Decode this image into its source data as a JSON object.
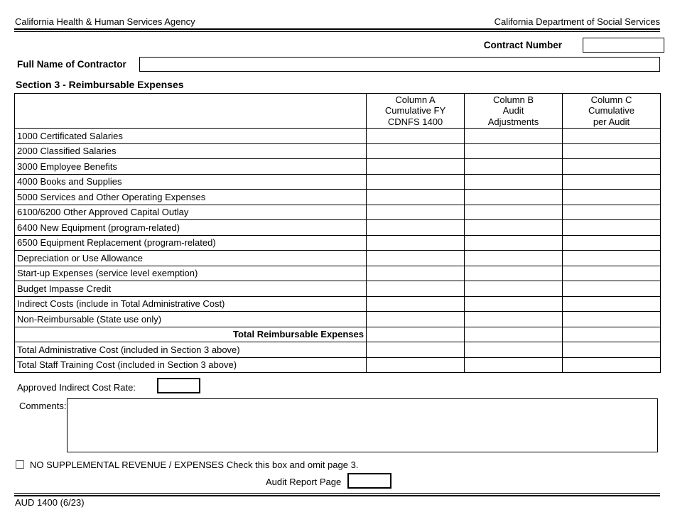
{
  "header": {
    "agency_left": "California Health & Human Services Agency",
    "agency_right": "California Department of Social Services"
  },
  "contract_number": {
    "label": "Contract Number",
    "value": ""
  },
  "contractor": {
    "label": "Full Name of Contractor",
    "value": ""
  },
  "section3": {
    "title": "Section 3 - Reimbursable Expenses",
    "columns": [
      {
        "lines": [
          "Column A",
          "Cumulative FY",
          "CDNFS 1400"
        ]
      },
      {
        "lines": [
          "Column B",
          "Audit",
          "Adjustments"
        ]
      },
      {
        "lines": [
          "Column C",
          "Cumulative",
          "per Audit"
        ]
      }
    ],
    "rows": [
      {
        "label": "1000 Certificated Salaries",
        "style": "normal",
        "values": [
          "",
          "",
          ""
        ]
      },
      {
        "label": "2000 Classified Salaries",
        "style": "normal",
        "values": [
          "",
          "",
          ""
        ]
      },
      {
        "label": "3000 Employee Benefits",
        "style": "normal",
        "values": [
          "",
          "",
          ""
        ]
      },
      {
        "label": "4000 Books and Supplies",
        "style": "normal",
        "values": [
          "",
          "",
          ""
        ]
      },
      {
        "label": "5000 Services and Other Operating Expenses",
        "style": "normal",
        "values": [
          "",
          "",
          ""
        ]
      },
      {
        "label": "6100/6200 Other Approved Capital Outlay",
        "style": "normal",
        "values": [
          "",
          "",
          ""
        ]
      },
      {
        "label": "6400 New Equipment (program-related)",
        "style": "normal",
        "values": [
          "",
          "",
          ""
        ]
      },
      {
        "label": "6500 Equipment Replacement (program-related)",
        "style": "normal",
        "values": [
          "",
          "",
          ""
        ]
      },
      {
        "label": "Depreciation or Use Allowance",
        "style": "normal",
        "values": [
          "",
          "",
          ""
        ]
      },
      {
        "label": "Start-up Expenses (service level exemption)",
        "style": "normal",
        "values": [
          "",
          "",
          ""
        ]
      },
      {
        "label": "Budget Impasse Credit",
        "style": "normal",
        "values": [
          "",
          "",
          ""
        ]
      },
      {
        "label": "Indirect Costs (include in Total Administrative Cost)",
        "style": "normal",
        "values": [
          "",
          "",
          ""
        ]
      },
      {
        "label": "Non-Reimbursable (State use only)",
        "style": "normal",
        "values": [
          "",
          "",
          ""
        ]
      },
      {
        "label": "Total Reimbursable Expenses",
        "style": "total",
        "values": [
          "",
          "",
          ""
        ]
      },
      {
        "label": "Total Administrative Cost (included in Section 3 above)",
        "style": "normal",
        "values": [
          "",
          "",
          ""
        ]
      },
      {
        "label": "Total Staff Training Cost (included in Section 3 above)",
        "style": "normal",
        "values": [
          "",
          "",
          ""
        ]
      }
    ]
  },
  "indirect_cost_rate": {
    "label": "Approved Indirect Cost Rate:",
    "value": ""
  },
  "comments": {
    "label": "Comments:",
    "value": ""
  },
  "supplemental_checkbox": {
    "label": "NO SUPPLEMENTAL REVENUE / EXPENSES Check this box and omit page 3.",
    "checked": false
  },
  "audit_report_page": {
    "label": "Audit Report Page",
    "value": ""
  },
  "footer": {
    "form_id": "AUD 1400 (6/23)"
  },
  "colors": {
    "ink": "#000000",
    "paper": "#ffffff",
    "checkbox_border": "#5a5c5e"
  }
}
